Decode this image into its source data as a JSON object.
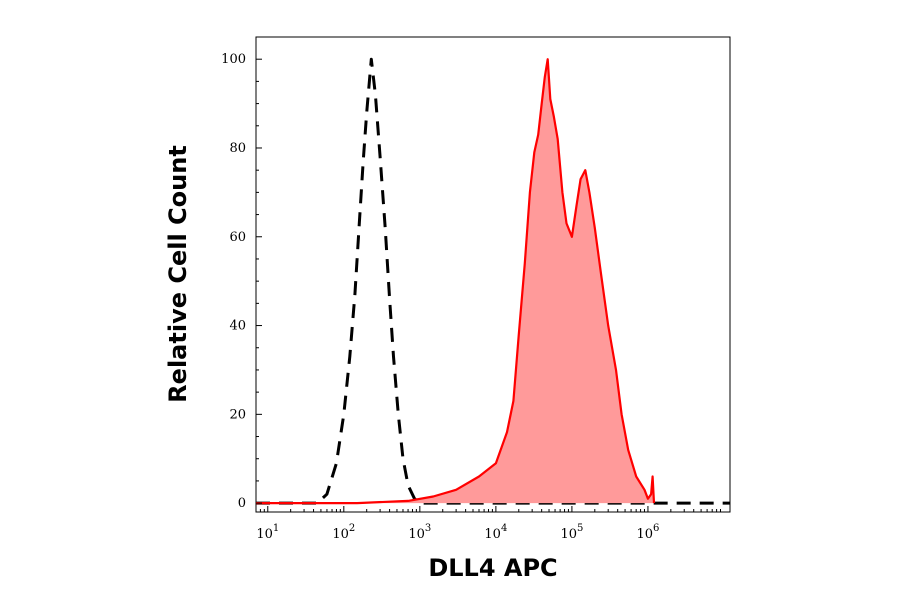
{
  "chart_data": {
    "type": "area",
    "title": "",
    "xlabel": "DLL4 APC",
    "ylabel": "Relative Cell Count",
    "x_scale": "log",
    "xlim": [
      7,
      12000000
    ],
    "ylim": [
      -2,
      105
    ],
    "y_ticks": [
      0,
      20,
      40,
      60,
      80,
      100
    ],
    "x_ticks": [
      {
        "base": "10",
        "exp": "1",
        "value": 10
      },
      {
        "base": "10",
        "exp": "2",
        "value": 100
      },
      {
        "base": "10",
        "exp": "3",
        "value": 1000
      },
      {
        "base": "10",
        "exp": "4",
        "value": 10000
      },
      {
        "base": "10",
        "exp": "5",
        "value": 100000
      },
      {
        "base": "10",
        "exp": "6",
        "value": 1000000
      }
    ],
    "grid": false,
    "legend": "none",
    "series": [
      {
        "style": "dashed",
        "color": "#000000",
        "fill": "none",
        "points": [
          [
            7,
            0
          ],
          [
            45,
            0
          ],
          [
            60,
            2
          ],
          [
            80,
            9
          ],
          [
            100,
            20
          ],
          [
            120,
            33
          ],
          [
            140,
            47
          ],
          [
            160,
            63
          ],
          [
            180,
            77
          ],
          [
            200,
            88
          ],
          [
            230,
            100
          ],
          [
            260,
            92
          ],
          [
            300,
            78
          ],
          [
            350,
            62
          ],
          [
            400,
            46
          ],
          [
            450,
            33
          ],
          [
            520,
            20
          ],
          [
            600,
            10
          ],
          [
            700,
            4
          ],
          [
            850,
            1
          ],
          [
            1000,
            0
          ],
          [
            12000000,
            0
          ]
        ]
      },
      {
        "style": "solid",
        "color": "#ff0000",
        "fill": "#ff9a9a",
        "points": [
          [
            7,
            0
          ],
          [
            150,
            0
          ],
          [
            700,
            0.5
          ],
          [
            1500,
            1.5
          ],
          [
            3000,
            3
          ],
          [
            6000,
            6
          ],
          [
            10000,
            9
          ],
          [
            14000,
            16
          ],
          [
            17000,
            23
          ],
          [
            20000,
            38
          ],
          [
            24000,
            54
          ],
          [
            28000,
            70
          ],
          [
            32000,
            79
          ],
          [
            36000,
            83
          ],
          [
            40000,
            90
          ],
          [
            44000,
            96
          ],
          [
            48000,
            100
          ],
          [
            52000,
            91
          ],
          [
            58000,
            87
          ],
          [
            65000,
            82
          ],
          [
            75000,
            70
          ],
          [
            85000,
            63
          ],
          [
            100000,
            60
          ],
          [
            115000,
            67
          ],
          [
            130000,
            73
          ],
          [
            150000,
            75
          ],
          [
            170000,
            70
          ],
          [
            200000,
            62
          ],
          [
            240000,
            52
          ],
          [
            300000,
            40
          ],
          [
            380000,
            30
          ],
          [
            450000,
            20
          ],
          [
            550000,
            12
          ],
          [
            700000,
            6
          ],
          [
            900000,
            3
          ],
          [
            1000000,
            1
          ],
          [
            1100000,
            2
          ],
          [
            1150000,
            6
          ],
          [
            1200000,
            0
          ]
        ]
      }
    ]
  }
}
